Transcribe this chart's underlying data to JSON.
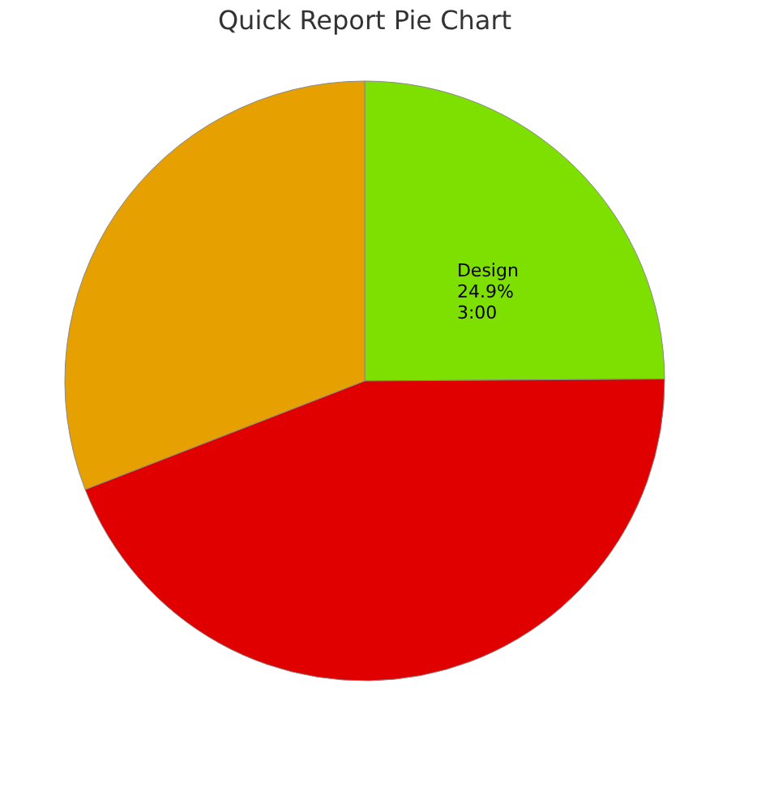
{
  "chart_data": {
    "type": "pie",
    "title": "Quick Report Pie Chart",
    "categories": [
      "Design",
      null,
      null
    ],
    "values": [
      24.9,
      44.2,
      30.9
    ],
    "colors": [
      "#7ee000",
      "#e00000",
      "#e6a100"
    ],
    "value_labels": [
      "24.9%",
      null,
      null
    ],
    "annotations": [
      "3:00"
    ],
    "legend": false
  }
}
